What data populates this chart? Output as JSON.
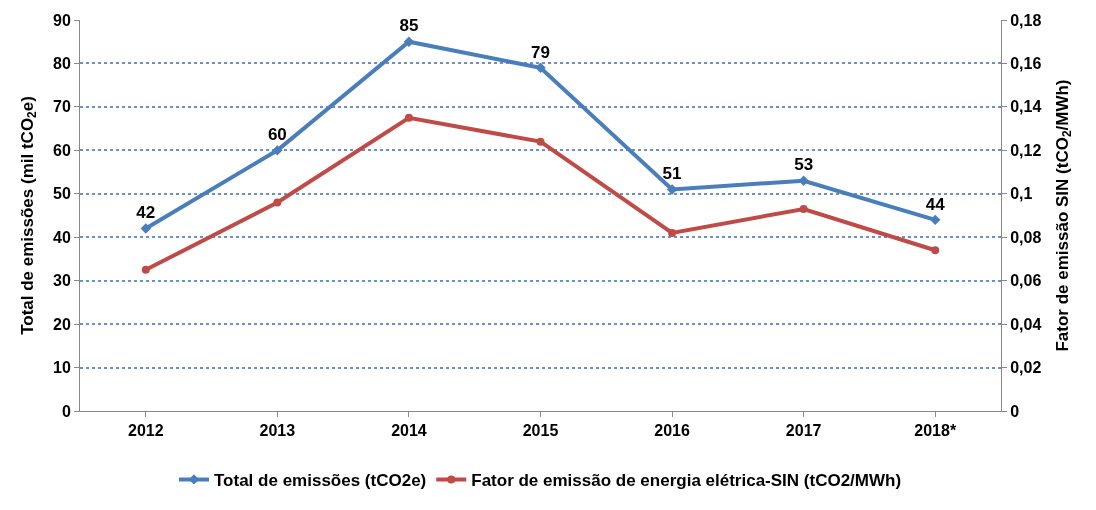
{
  "chart_data": {
    "type": "line",
    "ylabel": "Total de emissões (mil tCO$_{2}$e)",
    "y2label": "Fator de emissão SIN (tCO$_{2}$/MWh)",
    "categories": [
      "2012",
      "2013",
      "2014",
      "2015",
      "2016",
      "2017",
      "2018*"
    ],
    "series": [
      {
        "name": "Total de emissões (tCO2e)",
        "color": "#4a7ebb",
        "marker": "diamond",
        "values": [
          42,
          60,
          85,
          79,
          51,
          53,
          44
        ],
        "data_labels": true
      },
      {
        "name": "Fator de emissão de energia elétrica-SIN (tCO2/MWh)",
        "color": "#be4b48",
        "marker": "circle",
        "axis": "y2",
        "values": [
          0.065,
          0.096,
          0.135,
          0.124,
          0.082,
          0.093,
          0.074
        ]
      }
    ],
    "ylim": [
      0,
      90
    ],
    "yticks": [
      0,
      10,
      20,
      30,
      40,
      50,
      60,
      70,
      80,
      90
    ],
    "y2lim": [
      0,
      0.18
    ],
    "y2ticks": [
      0,
      {
        "value": 0.02,
        "label": "0,02"
      },
      {
        "value": 0.04,
        "label": "0,04"
      },
      {
        "value": 0.06,
        "label": "0,06"
      },
      {
        "value": 0.08,
        "label": "0,08"
      },
      {
        "value": 0.1,
        "label": "0,1"
      },
      {
        "value": 0.12,
        "label": "0,12"
      },
      {
        "value": 0.14,
        "label": "0,14"
      },
      {
        "value": 0.16,
        "label": "0,16"
      },
      {
        "value": 0.18,
        "label": "0,18"
      }
    ],
    "grid": "y",
    "legend": "bottom",
    "line_style": "solid"
  }
}
